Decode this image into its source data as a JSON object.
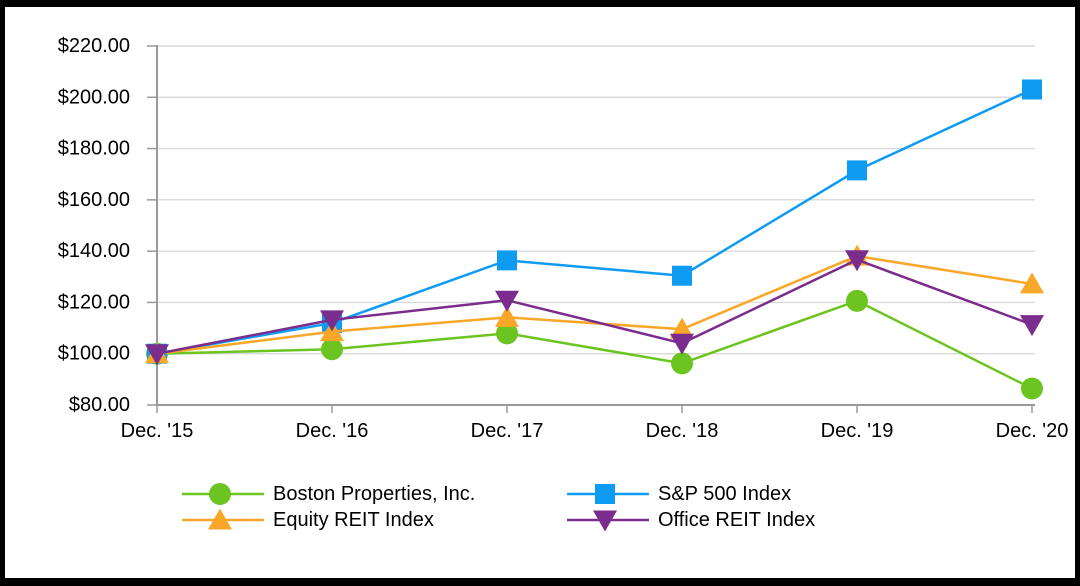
{
  "page": {
    "background_color": "#ffffff",
    "frame_border_color": "#000000"
  },
  "chart_data": {
    "type": "line",
    "categories": [
      "Dec. '15",
      "Dec. '16",
      "Dec. '17",
      "Dec. '18",
      "Dec. '19",
      "Dec. '20"
    ],
    "series": [
      {
        "name": "Boston Properties, Inc.",
        "color": "#6cc421",
        "marker": "circle",
        "values": [
          100.0,
          101.74,
          107.95,
          96.25,
          120.62,
          86.44
        ]
      },
      {
        "name": "S&P 500 Index",
        "color": "#0f9bf2",
        "marker": "square",
        "values": [
          100.0,
          111.96,
          136.4,
          130.42,
          171.49,
          203.04
        ]
      },
      {
        "name": "Equity REIT Index",
        "color": "#f9a728",
        "marker": "triangle-up",
        "values": [
          100.0,
          108.63,
          114.19,
          109.57,
          138.07,
          127.23
        ]
      },
      {
        "name": "Office REIT Index",
        "color": "#7a2d8d",
        "marker": "triangle-down",
        "values": [
          100.0,
          113.19,
          120.85,
          104.07,
          136.64,
          111.33
        ]
      }
    ],
    "y_axis": {
      "ylim": [
        80,
        220
      ],
      "ticks": [
        {
          "label": "$220.00",
          "value": 220
        },
        {
          "label": "$200.00",
          "value": 200
        },
        {
          "label": "$180.00",
          "value": 180
        },
        {
          "label": "$160.00",
          "value": 160
        },
        {
          "label": "$140.00",
          "value": 140
        },
        {
          "label": "$120.00",
          "value": 120
        },
        {
          "label": "$100.00",
          "value": 100
        },
        {
          "label": "$80.00",
          "value": 80
        }
      ]
    },
    "grid": true,
    "legend_position": "bottom",
    "style": {
      "gridline_color": "#d9d9d9",
      "axis_color": "#999999",
      "text_color": "#000000"
    }
  }
}
